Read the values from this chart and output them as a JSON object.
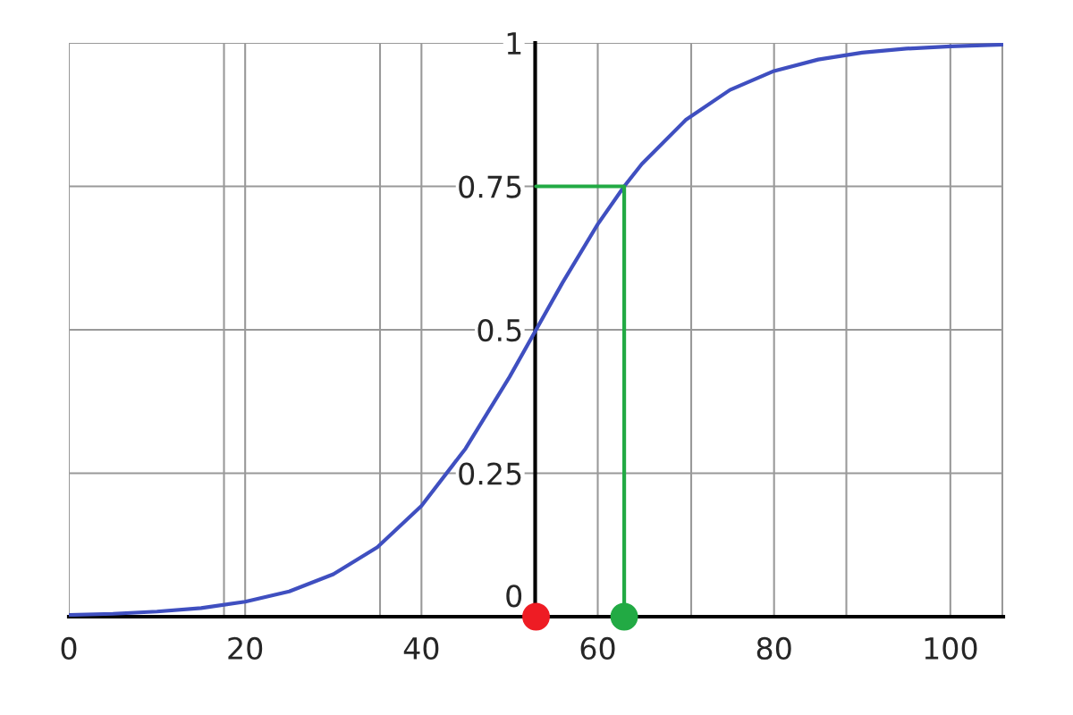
{
  "chart_data": {
    "type": "line",
    "xlim": [
      0,
      106
    ],
    "ylim": [
      0,
      1
    ],
    "xticks": [
      0,
      {
        "value": 17.6,
        "label": null
      },
      20,
      {
        "value": 35.3,
        "label": null
      },
      40,
      {
        "value": 52.9,
        "label": null
      },
      60,
      {
        "value": 70.6,
        "label": null
      },
      80,
      {
        "value": 88.2,
        "label": null
      },
      100,
      {
        "value": 105.9,
        "label": null
      }
    ],
    "yticks": [
      0,
      0.25,
      0.5,
      0.75,
      1
    ],
    "grid": true,
    "series": [
      {
        "color": "#3f4fc0",
        "x": [
          0,
          5,
          10,
          15,
          20,
          25,
          30,
          35,
          40,
          45,
          50,
          53,
          56,
          60,
          63,
          65,
          70,
          75,
          80,
          85,
          90,
          95,
          100,
          106
        ],
        "values": [
          0.003,
          0.005,
          0.009,
          0.015,
          0.026,
          0.044,
          0.074,
          0.121,
          0.193,
          0.293,
          0.418,
          0.5,
          0.582,
          0.684,
          0.75,
          0.789,
          0.866,
          0.918,
          0.951,
          0.971,
          0.983,
          0.99,
          0.994,
          0.997
        ]
      },
      {
        "type": "line",
        "color": "#22aa44",
        "x": [
          53,
          63,
          63
        ],
        "values": [
          0.75,
          0.75,
          0
        ]
      },
      {
        "type": "scatter",
        "color": "#ee1c24",
        "x": [
          53
        ],
        "values": [
          0
        ]
      },
      {
        "type": "scatter",
        "color": "#22aa44",
        "x": [
          63
        ],
        "values": [
          0
        ]
      }
    ]
  }
}
